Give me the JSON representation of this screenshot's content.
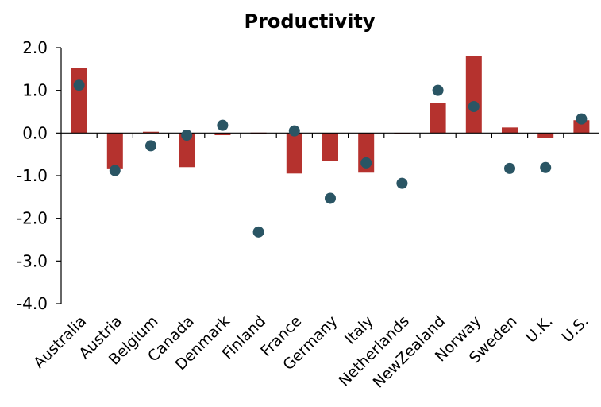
{
  "chart_data": {
    "type": "bar",
    "title": "Productivity",
    "xlabel": "",
    "ylabel": "",
    "ylim": [
      -4.0,
      2.0
    ],
    "yticks": [
      "2.0",
      "1.0",
      "0.0",
      "-1.0",
      "-2.0",
      "-3.0",
      "-4.0"
    ],
    "ytick_values": [
      2.0,
      1.0,
      0.0,
      -1.0,
      -2.0,
      -3.0,
      -4.0
    ],
    "grid": false,
    "legend": "none",
    "categories": [
      "Australia",
      "Austria",
      "Belgium",
      "Canada",
      "Denmark",
      "Finland",
      "France",
      "Germany",
      "Italy",
      "Netherlands",
      "NewZealand",
      "Norway",
      "Sweden",
      "U.K.",
      "U.S."
    ],
    "series": [
      {
        "type": "bar",
        "color": "#B5322E",
        "values": [
          1.53,
          -0.83,
          0.03,
          -0.8,
          -0.05,
          0.01,
          -0.95,
          -0.66,
          -0.93,
          -0.02,
          0.7,
          1.8,
          0.13,
          -0.12,
          0.3
        ]
      },
      {
        "type": "scatter",
        "color": "#2A5564",
        "values": [
          1.12,
          -0.88,
          -0.3,
          -0.05,
          0.18,
          -2.32,
          0.05,
          -1.53,
          -0.7,
          -1.18,
          1.0,
          0.62,
          -0.83,
          -0.81,
          0.33
        ]
      }
    ]
  }
}
